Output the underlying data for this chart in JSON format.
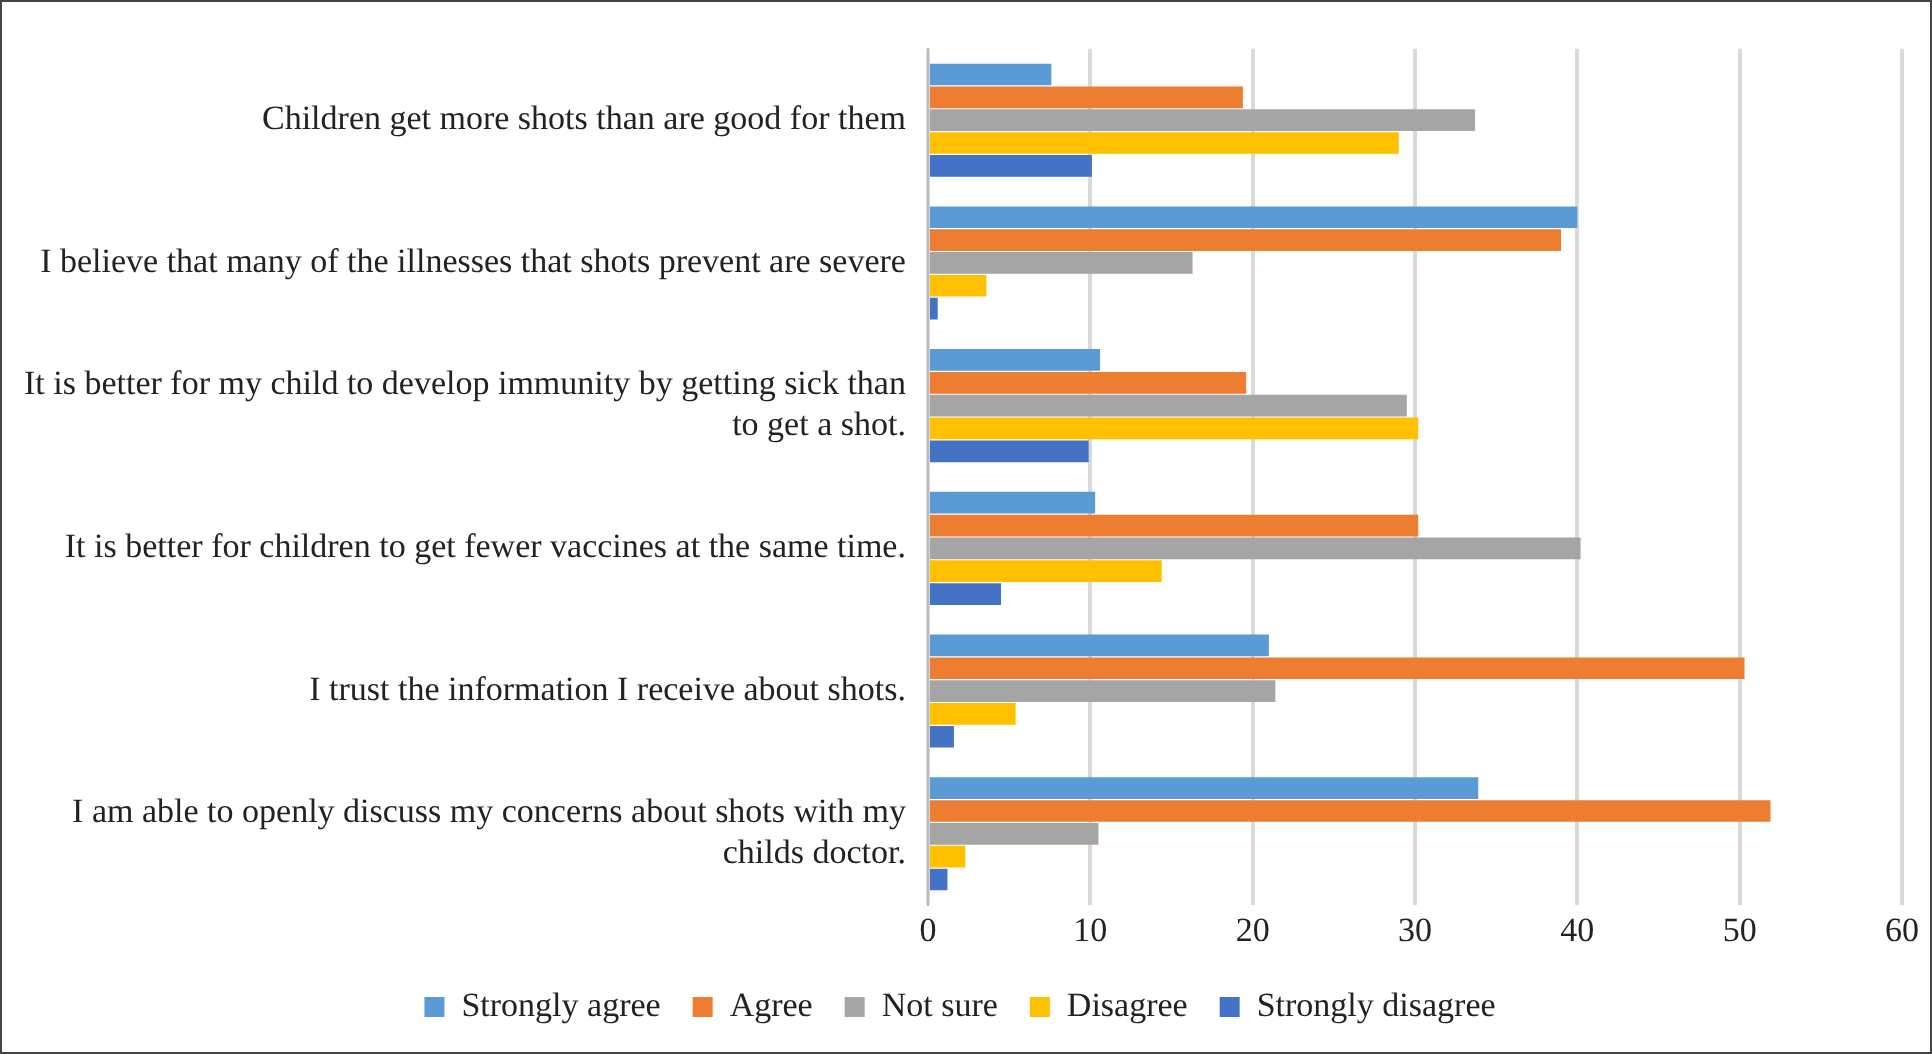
{
  "chart_data": {
    "type": "bar",
    "orientation": "horizontal",
    "categories": [
      "Children get more shots than are good for them",
      "I believe that many of the illnesses that shots prevent are severe",
      "It is better for my child to develop immunity by getting sick than to get a shot.",
      "It is better for children to get fewer vaccines at the same time.",
      "I trust the information I receive about shots.",
      "I am able to openly discuss my concerns about shots with my childs doctor."
    ],
    "series": [
      {
        "name": "Strongly agree",
        "color": "#5b9bd5",
        "values": [
          7.6,
          40.0,
          10.6,
          10.3,
          21.0,
          33.9
        ]
      },
      {
        "name": "Agree",
        "color": "#ed7d31",
        "values": [
          19.4,
          39.0,
          19.6,
          30.2,
          50.3,
          51.9
        ]
      },
      {
        "name": "Not sure",
        "color": "#a5a5a5",
        "values": [
          33.7,
          16.3,
          29.5,
          40.2,
          21.4,
          10.5
        ]
      },
      {
        "name": "Disagree",
        "color": "#ffc000",
        "values": [
          29.0,
          3.6,
          30.2,
          14.4,
          5.4,
          2.3
        ]
      },
      {
        "name": "Strongly disagree",
        "color": "#4472c4",
        "values": [
          10.1,
          0.6,
          9.9,
          4.5,
          1.6,
          1.2
        ]
      }
    ],
    "xlim": [
      0,
      60
    ],
    "xticks": [
      0,
      10,
      20,
      30,
      40,
      50,
      60
    ],
    "grid": "x",
    "legend": "bottom"
  }
}
